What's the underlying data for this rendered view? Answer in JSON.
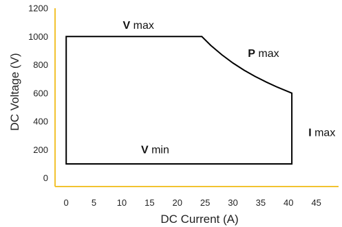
{
  "chart_data": {
    "type": "line",
    "xlabel": "DC Current (A)",
    "ylabel": "DC Voltage (V)",
    "xlim": [
      -2,
      49
    ],
    "ylim": [
      -60,
      1200
    ],
    "xticks": [
      0,
      5,
      10,
      15,
      20,
      25,
      30,
      35,
      40,
      45
    ],
    "yticks": [
      0,
      200,
      400,
      600,
      800,
      1000,
      1200
    ],
    "axis_color": "#f2c230",
    "line_color": "#000000",
    "series": [
      {
        "points": [
          {
            "x": 0,
            "y": 1000
          },
          {
            "x": 24.4,
            "y": 1000
          },
          {
            "x": 26,
            "y": 938
          },
          {
            "x": 28,
            "y": 871
          },
          {
            "x": 30,
            "y": 813
          },
          {
            "x": 32,
            "y": 762
          },
          {
            "x": 34,
            "y": 718
          },
          {
            "x": 36,
            "y": 678
          },
          {
            "x": 38,
            "y": 642
          },
          {
            "x": 40.6,
            "y": 600
          },
          {
            "x": 40.6,
            "y": 100
          },
          {
            "x": 0,
            "y": 100
          }
        ]
      }
    ],
    "annotations": [
      {
        "bold": "V",
        "text": "max",
        "x": 13,
        "y": 1055
      },
      {
        "bold": "P",
        "text": "max",
        "x": 35.5,
        "y": 855
      },
      {
        "bold": "I",
        "text": "max",
        "x": 46,
        "y": 295
      },
      {
        "bold": "V",
        "text": "min",
        "x": 16,
        "y": 175
      }
    ]
  }
}
